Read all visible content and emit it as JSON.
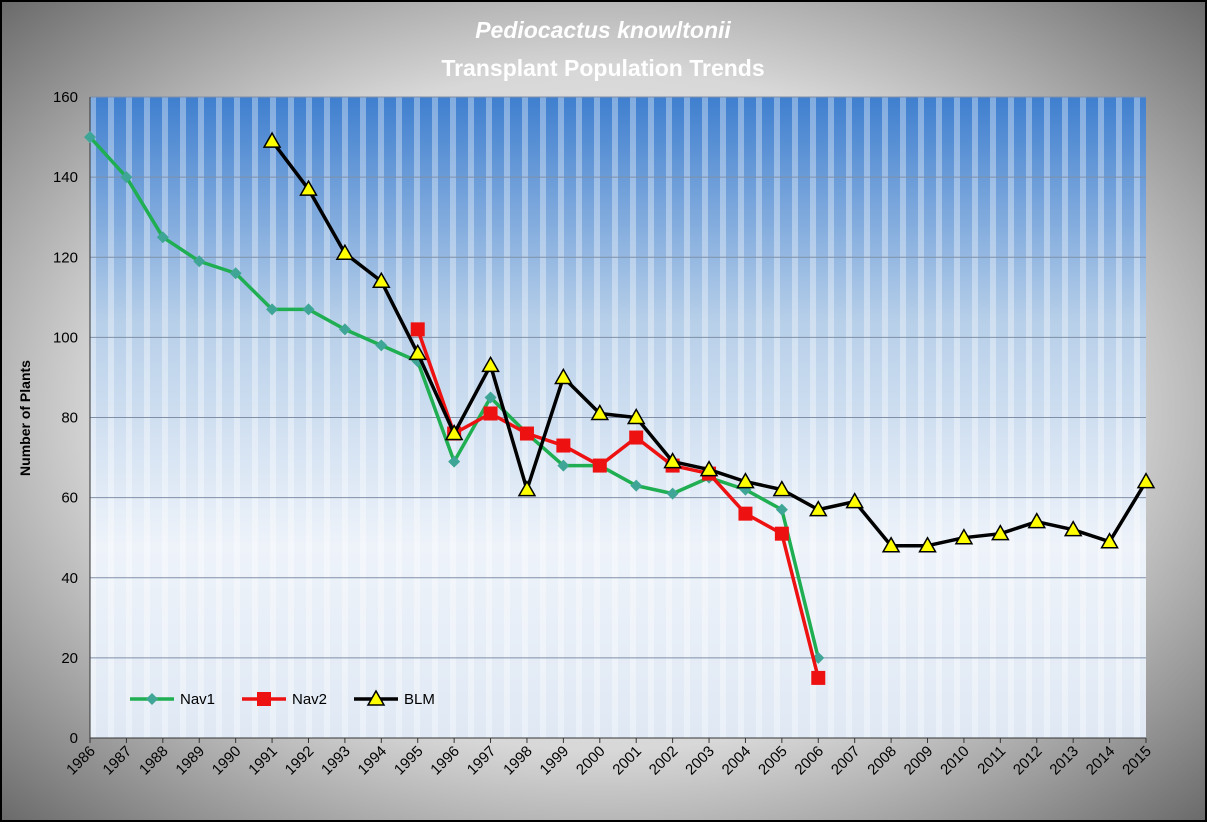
{
  "chart_data": {
    "type": "line",
    "title": "Pediocactus knowltonii",
    "subtitle": "Transplant Population Trends",
    "y_label": "Number of Plants",
    "categories": [
      "1986",
      "1987",
      "1988",
      "1989",
      "1990",
      "1991",
      "1992",
      "1993",
      "1994",
      "1995",
      "1996",
      "1997",
      "1998",
      "1999",
      "2000",
      "2001",
      "2002",
      "2003",
      "2004",
      "2005",
      "2006",
      "2007",
      "2008",
      "2009",
      "2010",
      "2011",
      "2012",
      "2013",
      "2014",
      "2015"
    ],
    "series": [
      {
        "name": "Nav1",
        "color": "#1fae52",
        "marker": "diamond",
        "marker_color": "#3fa596",
        "values": [
          150,
          140,
          125,
          119,
          116,
          107,
          107,
          102,
          98,
          94,
          69,
          85,
          76,
          68,
          68,
          63,
          61,
          65,
          62,
          57,
          20,
          null,
          null,
          null,
          null,
          null,
          null,
          null,
          null,
          null
        ]
      },
      {
        "name": "Nav2",
        "color": "#ee1111",
        "marker": "square",
        "marker_color": "#ee1111",
        "values": [
          null,
          null,
          null,
          null,
          null,
          null,
          null,
          null,
          null,
          102,
          76,
          81,
          76,
          73,
          68,
          75,
          68,
          66,
          56,
          51,
          15,
          null,
          null,
          null,
          null,
          null,
          null,
          null,
          null,
          null
        ]
      },
      {
        "name": "BLM",
        "color": "#000000",
        "marker": "triangle",
        "marker_color": "#ffff00",
        "values": [
          null,
          null,
          null,
          null,
          null,
          149,
          137,
          121,
          114,
          96,
          76,
          93,
          62,
          90,
          81,
          80,
          69,
          67,
          64,
          62,
          57,
          59,
          48,
          48,
          50,
          51,
          54,
          52,
          49,
          64
        ]
      }
    ],
    "ylim": [
      0,
      160
    ],
    "yticks": [
      0,
      20,
      40,
      60,
      80,
      100,
      120,
      140,
      160
    ],
    "grid": true,
    "legend": "lower left"
  }
}
